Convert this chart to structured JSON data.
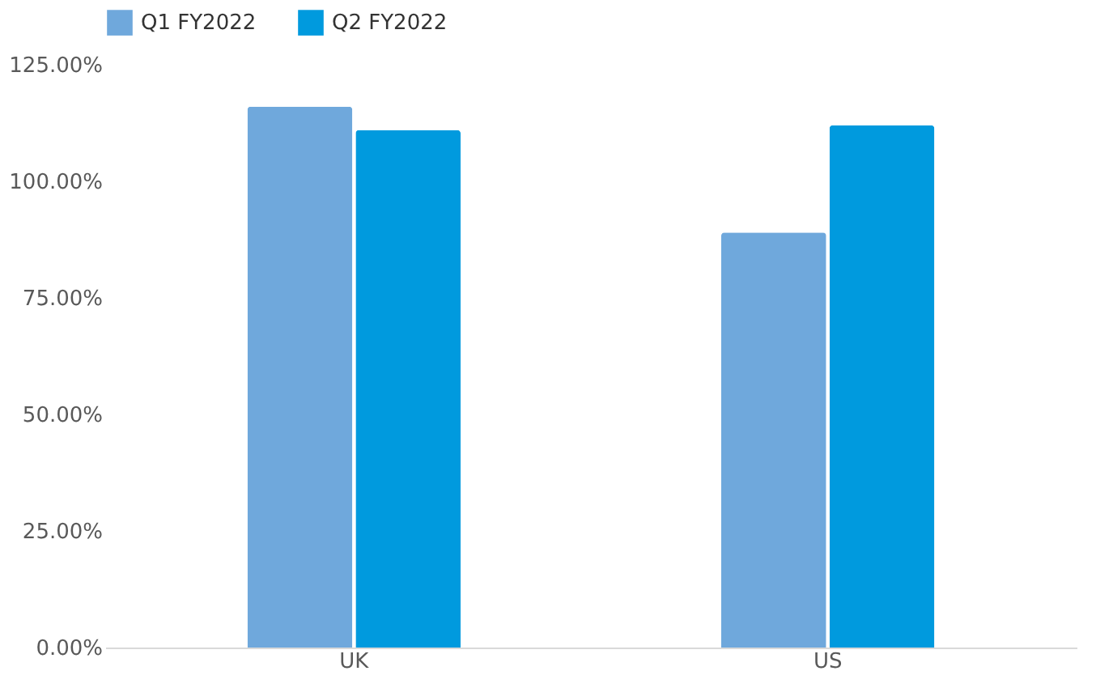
{
  "chart_data": {
    "type": "bar",
    "categories": [
      "UK",
      "US"
    ],
    "series": [
      {
        "name": "Q1 FY2022",
        "color": "#6fa8dc",
        "values": [
          116,
          89
        ]
      },
      {
        "name": "Q2 FY2022",
        "color": "#009ade",
        "values": [
          111,
          112
        ]
      }
    ],
    "ylim": [
      0,
      125
    ],
    "yticks": [
      {
        "value": 0,
        "label": "0.00%"
      },
      {
        "value": 25,
        "label": "25.00%"
      },
      {
        "value": 50,
        "label": "50.00%"
      },
      {
        "value": 75,
        "label": "75.00%"
      },
      {
        "value": 100,
        "label": "100.00%"
      },
      {
        "value": 125,
        "label": "125.00%"
      }
    ],
    "grid": false,
    "legend": "top"
  }
}
